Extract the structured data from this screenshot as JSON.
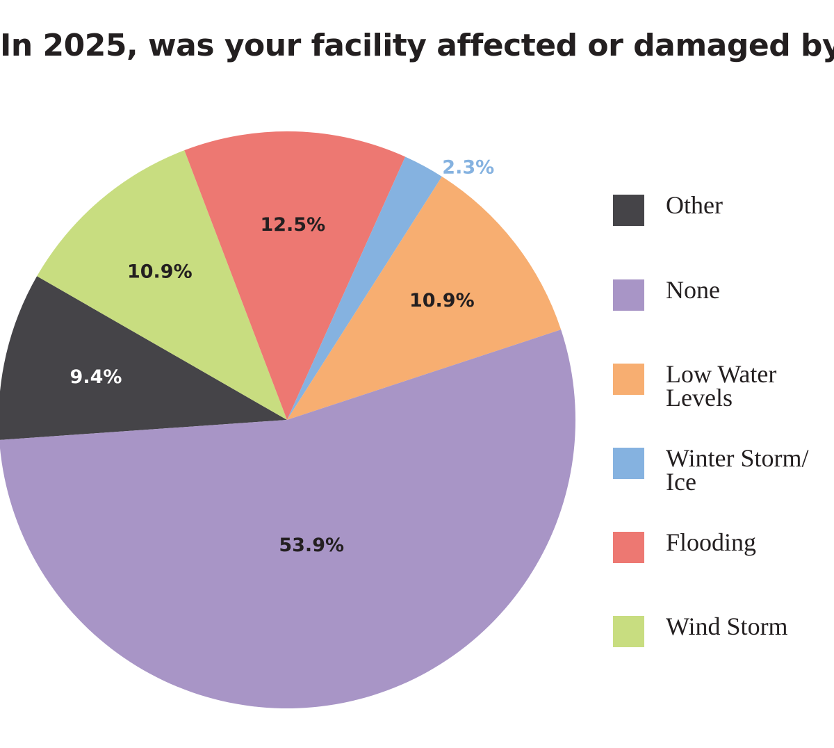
{
  "title": "In 2025, was your facility affected or damaged by:",
  "chart_data": {
    "type": "pie",
    "title": "In 2025, was your facility affected or damaged by:",
    "slices": [
      {
        "name": "Other",
        "value": 9.4,
        "label": "9.4%",
        "color": "#454448",
        "label_color": "#ffffff"
      },
      {
        "name": "Wind Storm",
        "value": 10.9,
        "label": "10.9%",
        "color": "#c8dd80",
        "label_color": "#231f20"
      },
      {
        "name": "Flooding",
        "value": 12.5,
        "label": "12.5%",
        "color": "#ed7872",
        "label_color": "#231f20"
      },
      {
        "name": "Winter Storm/ Ice",
        "value": 2.3,
        "label": "2.3%",
        "color": "#85b2e0",
        "label_color": "#85b2e0",
        "label_outside": true
      },
      {
        "name": "Low Water Levels",
        "value": 10.9,
        "label": "10.9%",
        "color": "#f7ae71",
        "label_color": "#231f20"
      },
      {
        "name": "None",
        "value": 53.9,
        "label": "53.9%",
        "color": "#a895c6",
        "label_color": "#231f20"
      }
    ],
    "legend_position": "right"
  },
  "legend": {
    "items": [
      {
        "label": "Other",
        "color": "#454448"
      },
      {
        "label": "None",
        "color": "#a895c6"
      },
      {
        "label": "Low Water Levels",
        "color": "#f7ae71"
      },
      {
        "label": "Winter Storm/ Ice",
        "color": "#85b2e0"
      },
      {
        "label": "Flooding",
        "color": "#ed7872"
      },
      {
        "label": "Wind Storm",
        "color": "#c8dd80"
      }
    ]
  }
}
